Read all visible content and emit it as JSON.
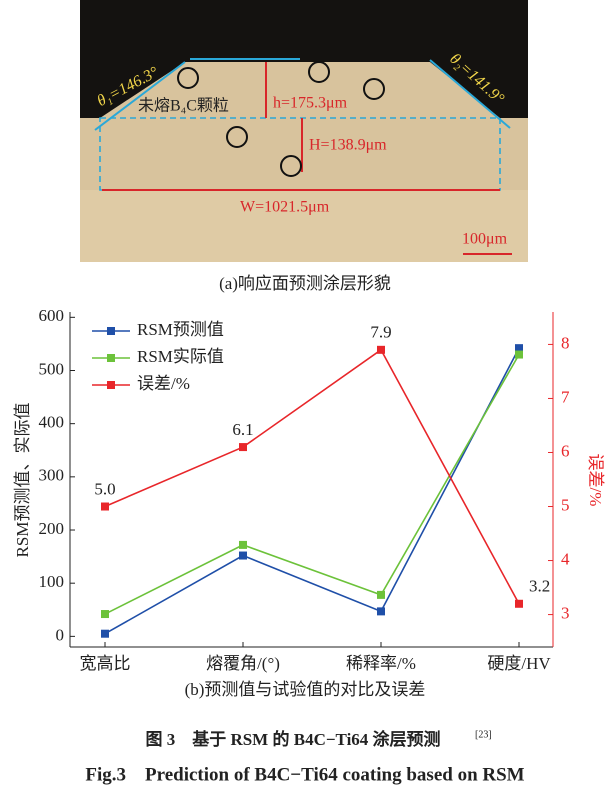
{
  "micrograph": {
    "theta1": "θ₁=146.3°",
    "theta2": "θ₂=141.9°",
    "particles": "未熔B₄C颗粒",
    "h": "h=175.3μm",
    "H": "H=138.9μm",
    "W": "W=1021.5μm",
    "scale": "100μm"
  },
  "caption_a": "(a)响应面预测涂层形貌",
  "chart_data": {
    "type": "line",
    "categories": [
      "宽高比",
      "熔覆角/(°)",
      "稀释率/%",
      "硬度/HV"
    ],
    "series": [
      {
        "name": "RSM预测值",
        "color": "#1f4fa8",
        "values": [
          5,
          152,
          47,
          542
        ]
      },
      {
        "name": "RSM实际值",
        "color": "#6cc23a",
        "values": [
          42,
          172,
          78,
          530
        ]
      },
      {
        "name": "误差/%",
        "color": "#e8262a",
        "axis": "y2",
        "values": [
          5.0,
          6.1,
          7.9,
          3.2
        ],
        "value_labels": [
          "5.0",
          "6.1",
          "7.9",
          "3.2"
        ]
      }
    ],
    "ylabel": "RSM预测值、实际值",
    "y2label": "误差/%",
    "xlabel": "(b)预测值与试验值的对比及误差",
    "ylim": [
      -20,
      610
    ],
    "yticks": [
      0,
      100,
      200,
      300,
      400,
      500,
      600
    ],
    "y2lim": [
      2.4,
      8.6
    ],
    "y2ticks": [
      3,
      4,
      5,
      6,
      7,
      8
    ],
    "y2_color": "#e8262a",
    "legend": "upper left"
  },
  "figure_caption": {
    "zh": "图 3　基于 RSM 的 B4C−Ti64 涂层预测",
    "ref": "[23]",
    "en": "Fig.3　Prediction of B4C−Ti64 coating based on RSM"
  }
}
